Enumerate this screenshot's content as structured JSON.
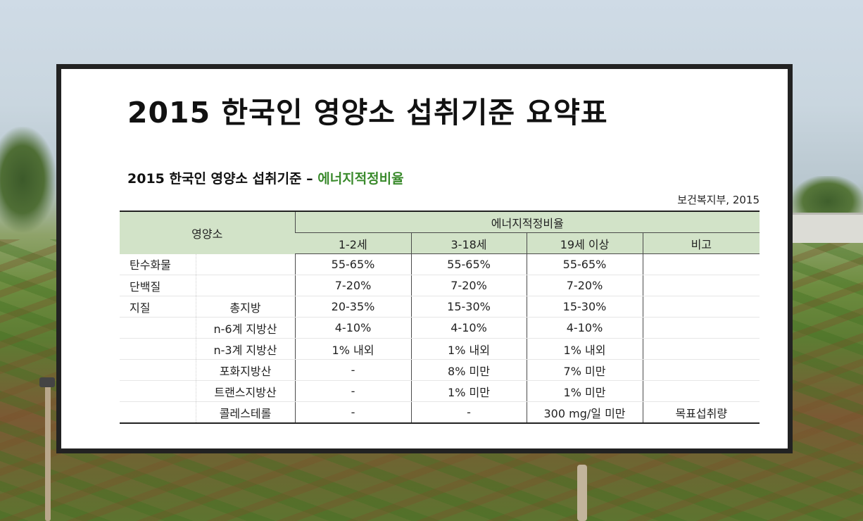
{
  "title": "2015 한국인 영양소 섭취기준 요약표",
  "subtitle": {
    "prefix": "2015 한국인 영양소 섭취기준 – ",
    "highlight": "에너지적정비율"
  },
  "source": "보건복지부, 2015",
  "table": {
    "header_nutrient": "영양소",
    "header_group": "에너지적정비율",
    "age_columns": [
      "1-2세",
      "3-18세",
      "19세 이상",
      "비고"
    ],
    "rows": [
      {
        "category": "탄수화물",
        "sub": "",
        "c1": "55-65%",
        "c2": "55-65%",
        "c3": "55-65%",
        "note": ""
      },
      {
        "category": "단백질",
        "sub": "",
        "c1": "7-20%",
        "c2": "7-20%",
        "c3": "7-20%",
        "note": ""
      },
      {
        "category": "지질",
        "sub": "총지방",
        "c1": "20-35%",
        "c2": "15-30%",
        "c3": "15-30%",
        "note": ""
      },
      {
        "category": "",
        "sub": "n-6계 지방산",
        "c1": "4-10%",
        "c2": "4-10%",
        "c3": "4-10%",
        "note": ""
      },
      {
        "category": "",
        "sub": "n-3계 지방산",
        "c1": "1% 내외",
        "c2": "1% 내외",
        "c3": "1% 내외",
        "note": ""
      },
      {
        "category": "",
        "sub": "포화지방산",
        "c1": "-",
        "c2": "8% 미만",
        "c3": "7% 미만",
        "note": ""
      },
      {
        "category": "",
        "sub": "트랜스지방산",
        "c1": "-",
        "c2": "1% 미만",
        "c3": "1% 미만",
        "note": ""
      },
      {
        "category": "",
        "sub": "콜레스테롤",
        "c1": "-",
        "c2": "-",
        "c3": "300 mg/일 미만",
        "note": "목표섭취량"
      }
    ]
  },
  "colors": {
    "accent_green": "#3a8a2c",
    "header_bg": "#d2e3c8",
    "frame": "#222222"
  }
}
